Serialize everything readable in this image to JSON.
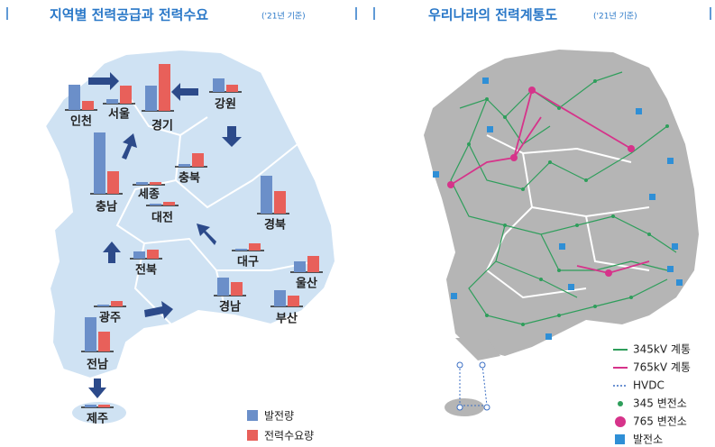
{
  "left_panel": {
    "title": "지역별 전력공급과 전력수요",
    "subtitle": "('21년 기준)",
    "series_names": [
      "발전량",
      "전력수요량"
    ],
    "colors": [
      "#6b8fc9",
      "#e8605a"
    ],
    "regions": [
      {
        "name": "인천",
        "generation": 28,
        "demand": 10
      },
      {
        "name": "서울",
        "generation": 5,
        "demand": 20
      },
      {
        "name": "경기",
        "generation": 28,
        "demand": 52
      },
      {
        "name": "강원",
        "generation": 15,
        "demand": 8
      },
      {
        "name": "충북",
        "generation": 3,
        "demand": 15
      },
      {
        "name": "세종",
        "generation": 3,
        "demand": 3
      },
      {
        "name": "대전",
        "generation": 2,
        "demand": 4
      },
      {
        "name": "충남",
        "generation": 68,
        "demand": 25
      },
      {
        "name": "경북",
        "generation": 42,
        "demand": 25
      },
      {
        "name": "전북",
        "generation": 8,
        "demand": 10
      },
      {
        "name": "대구",
        "generation": 2,
        "demand": 8
      },
      {
        "name": "울산",
        "generation": 12,
        "demand": 18
      },
      {
        "name": "경남",
        "generation": 20,
        "demand": 15
      },
      {
        "name": "부산",
        "generation": 18,
        "demand": 12
      },
      {
        "name": "광주",
        "generation": 2,
        "demand": 6
      },
      {
        "name": "전남",
        "generation": 38,
        "demand": 22
      },
      {
        "name": "제주",
        "generation": 3,
        "demand": 3
      }
    ]
  },
  "right_panel": {
    "title": "우리나라의 전력계통도",
    "subtitle": "('21년 기준)",
    "legend": [
      "345kV 계통",
      "765kV 계통",
      "HVDC",
      "345 변전소",
      "765 변전소",
      "발전소"
    ]
  }
}
